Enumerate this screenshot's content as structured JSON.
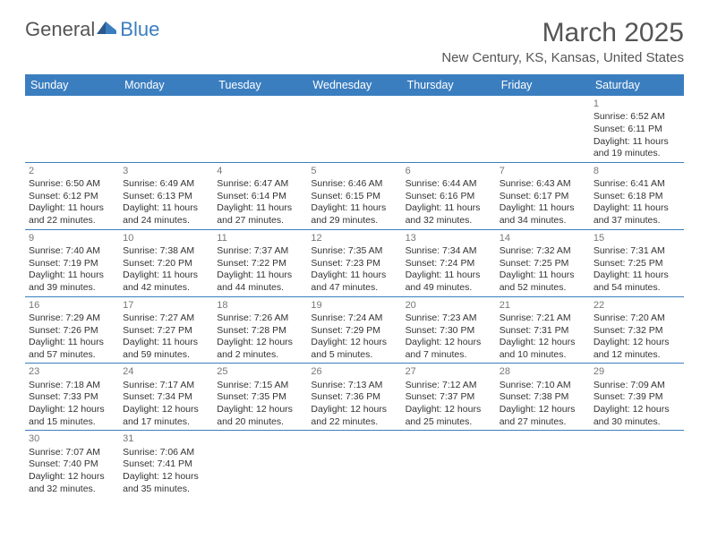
{
  "logo": {
    "part1": "General",
    "part2": "Blue"
  },
  "title": "March 2025",
  "location": "New Century, KS, Kansas, United States",
  "header_bg": "#3b7ec0",
  "day_names": [
    "Sunday",
    "Monday",
    "Tuesday",
    "Wednesday",
    "Thursday",
    "Friday",
    "Saturday"
  ],
  "weeks": [
    [
      null,
      null,
      null,
      null,
      null,
      null,
      {
        "n": "1",
        "sr": "6:52 AM",
        "ss": "6:11 PM",
        "dl": "11 hours and 19 minutes."
      }
    ],
    [
      {
        "n": "2",
        "sr": "6:50 AM",
        "ss": "6:12 PM",
        "dl": "11 hours and 22 minutes."
      },
      {
        "n": "3",
        "sr": "6:49 AM",
        "ss": "6:13 PM",
        "dl": "11 hours and 24 minutes."
      },
      {
        "n": "4",
        "sr": "6:47 AM",
        "ss": "6:14 PM",
        "dl": "11 hours and 27 minutes."
      },
      {
        "n": "5",
        "sr": "6:46 AM",
        "ss": "6:15 PM",
        "dl": "11 hours and 29 minutes."
      },
      {
        "n": "6",
        "sr": "6:44 AM",
        "ss": "6:16 PM",
        "dl": "11 hours and 32 minutes."
      },
      {
        "n": "7",
        "sr": "6:43 AM",
        "ss": "6:17 PM",
        "dl": "11 hours and 34 minutes."
      },
      {
        "n": "8",
        "sr": "6:41 AM",
        "ss": "6:18 PM",
        "dl": "11 hours and 37 minutes."
      }
    ],
    [
      {
        "n": "9",
        "sr": "7:40 AM",
        "ss": "7:19 PM",
        "dl": "11 hours and 39 minutes."
      },
      {
        "n": "10",
        "sr": "7:38 AM",
        "ss": "7:20 PM",
        "dl": "11 hours and 42 minutes."
      },
      {
        "n": "11",
        "sr": "7:37 AM",
        "ss": "7:22 PM",
        "dl": "11 hours and 44 minutes."
      },
      {
        "n": "12",
        "sr": "7:35 AM",
        "ss": "7:23 PM",
        "dl": "11 hours and 47 minutes."
      },
      {
        "n": "13",
        "sr": "7:34 AM",
        "ss": "7:24 PM",
        "dl": "11 hours and 49 minutes."
      },
      {
        "n": "14",
        "sr": "7:32 AM",
        "ss": "7:25 PM",
        "dl": "11 hours and 52 minutes."
      },
      {
        "n": "15",
        "sr": "7:31 AM",
        "ss": "7:25 PM",
        "dl": "11 hours and 54 minutes."
      }
    ],
    [
      {
        "n": "16",
        "sr": "7:29 AM",
        "ss": "7:26 PM",
        "dl": "11 hours and 57 minutes."
      },
      {
        "n": "17",
        "sr": "7:27 AM",
        "ss": "7:27 PM",
        "dl": "11 hours and 59 minutes."
      },
      {
        "n": "18",
        "sr": "7:26 AM",
        "ss": "7:28 PM",
        "dl": "12 hours and 2 minutes."
      },
      {
        "n": "19",
        "sr": "7:24 AM",
        "ss": "7:29 PM",
        "dl": "12 hours and 5 minutes."
      },
      {
        "n": "20",
        "sr": "7:23 AM",
        "ss": "7:30 PM",
        "dl": "12 hours and 7 minutes."
      },
      {
        "n": "21",
        "sr": "7:21 AM",
        "ss": "7:31 PM",
        "dl": "12 hours and 10 minutes."
      },
      {
        "n": "22",
        "sr": "7:20 AM",
        "ss": "7:32 PM",
        "dl": "12 hours and 12 minutes."
      }
    ],
    [
      {
        "n": "23",
        "sr": "7:18 AM",
        "ss": "7:33 PM",
        "dl": "12 hours and 15 minutes."
      },
      {
        "n": "24",
        "sr": "7:17 AM",
        "ss": "7:34 PM",
        "dl": "12 hours and 17 minutes."
      },
      {
        "n": "25",
        "sr": "7:15 AM",
        "ss": "7:35 PM",
        "dl": "12 hours and 20 minutes."
      },
      {
        "n": "26",
        "sr": "7:13 AM",
        "ss": "7:36 PM",
        "dl": "12 hours and 22 minutes."
      },
      {
        "n": "27",
        "sr": "7:12 AM",
        "ss": "7:37 PM",
        "dl": "12 hours and 25 minutes."
      },
      {
        "n": "28",
        "sr": "7:10 AM",
        "ss": "7:38 PM",
        "dl": "12 hours and 27 minutes."
      },
      {
        "n": "29",
        "sr": "7:09 AM",
        "ss": "7:39 PM",
        "dl": "12 hours and 30 minutes."
      }
    ],
    [
      {
        "n": "30",
        "sr": "7:07 AM",
        "ss": "7:40 PM",
        "dl": "12 hours and 32 minutes."
      },
      {
        "n": "31",
        "sr": "7:06 AM",
        "ss": "7:41 PM",
        "dl": "12 hours and 35 minutes."
      },
      null,
      null,
      null,
      null,
      null
    ]
  ],
  "labels": {
    "sunrise": "Sunrise:",
    "sunset": "Sunset:",
    "daylight": "Daylight:"
  }
}
